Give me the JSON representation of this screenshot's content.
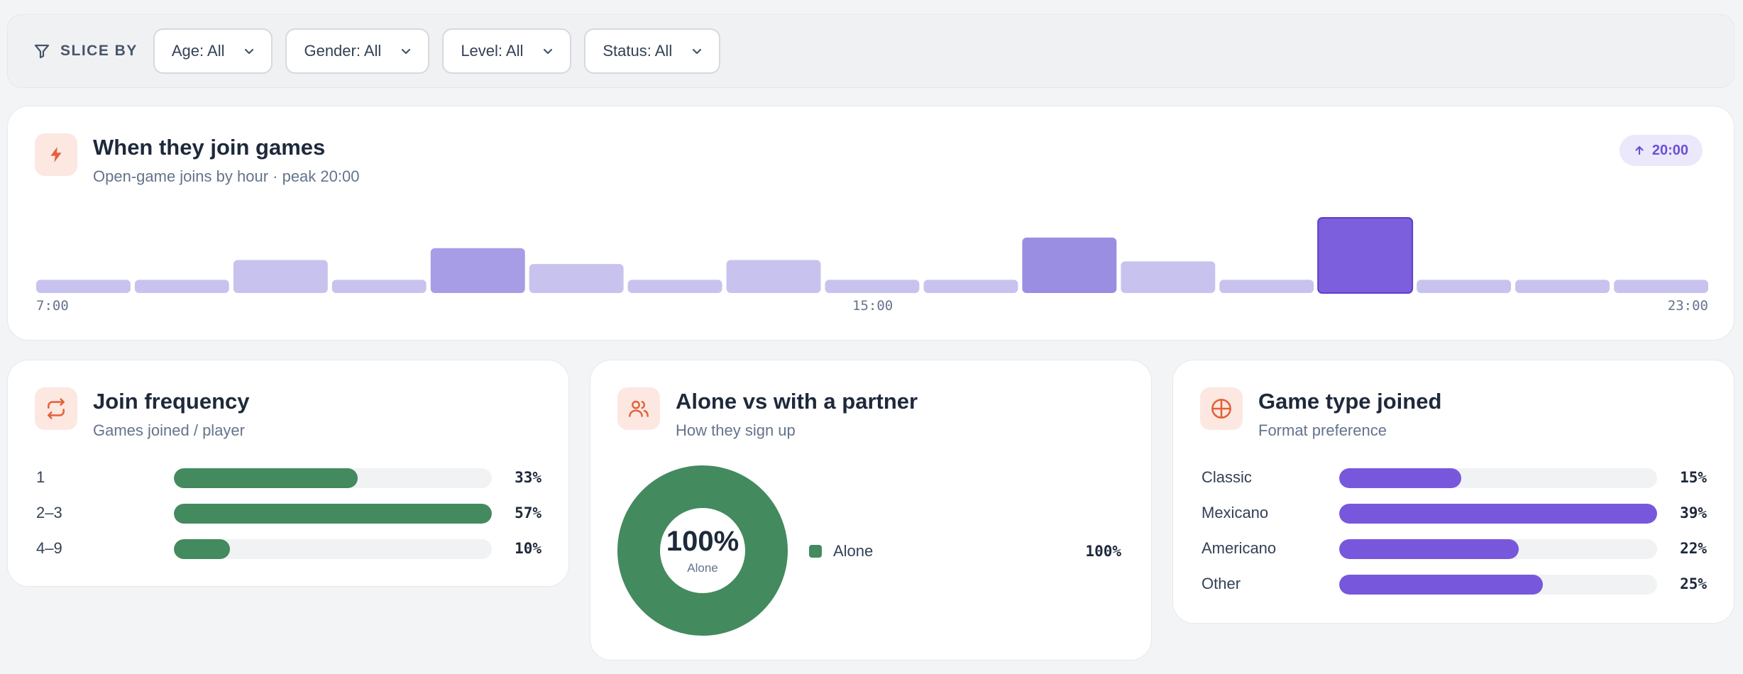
{
  "filters": {
    "slice_label": "SLICE BY",
    "dropdowns": [
      {
        "label": "Age: All"
      },
      {
        "label": "Gender: All"
      },
      {
        "label": "Level: All"
      },
      {
        "label": "Status: All"
      }
    ]
  },
  "join_time": {
    "title": "When they join games",
    "subtitle": "Open-game joins by hour · peak 20:00",
    "peak_badge": "20:00",
    "axis_labels": {
      "start": "7:00",
      "mid": "15:00",
      "end": "23:00"
    },
    "chart_data": {
      "type": "bar",
      "categories": [
        "7:00",
        "8:00",
        "9:00",
        "10:00",
        "11:00",
        "12:00",
        "13:00",
        "14:00",
        "15:00",
        "16:00",
        "17:00",
        "18:00",
        "19:00",
        "20:00",
        "21:00",
        "22:00",
        "23:00"
      ],
      "values": [
        1,
        1,
        2.5,
        1,
        3.4,
        2.2,
        1,
        2.5,
        1,
        1,
        4.2,
        2.4,
        1,
        5.7,
        1,
        1,
        1
      ],
      "peak": "20:00",
      "colors": {
        "base": "#c7c3ee",
        "mid": "#a79de7",
        "high": "#9a8ee3",
        "peak": "#7b5fdc"
      }
    }
  },
  "join_frequency": {
    "title": "Join frequency",
    "subtitle": "Games joined / player",
    "accent": "#438a5e",
    "rows": [
      {
        "label": "1",
        "value": 33,
        "pct": "33%"
      },
      {
        "label": "2–3",
        "value": 57,
        "pct": "57%"
      },
      {
        "label": "4–9",
        "value": 10,
        "pct": "10%"
      }
    ]
  },
  "partner": {
    "title": "Alone vs with a partner",
    "subtitle": "How they sign up",
    "center_value": "100%",
    "center_label": "Alone",
    "accent": "#438a5e",
    "legend": [
      {
        "label": "Alone",
        "pct": "100%",
        "value": 100
      }
    ]
  },
  "game_type": {
    "title": "Game type joined",
    "subtitle": "Format preference",
    "accent": "#7758dc",
    "rows": [
      {
        "label": "Classic",
        "value": 15,
        "pct": "15%"
      },
      {
        "label": "Mexicano",
        "value": 39,
        "pct": "39%"
      },
      {
        "label": "Americano",
        "value": 22,
        "pct": "22%"
      },
      {
        "label": "Other",
        "value": 25,
        "pct": "25%"
      }
    ]
  },
  "icons": {
    "filter": "filter-icon",
    "chevron": "chevron-down-icon",
    "bolt": "lightning-icon",
    "repeat": "repeat-icon",
    "users": "users-icon",
    "ball": "ball-icon",
    "arrow_up": "arrow-up-icon"
  }
}
